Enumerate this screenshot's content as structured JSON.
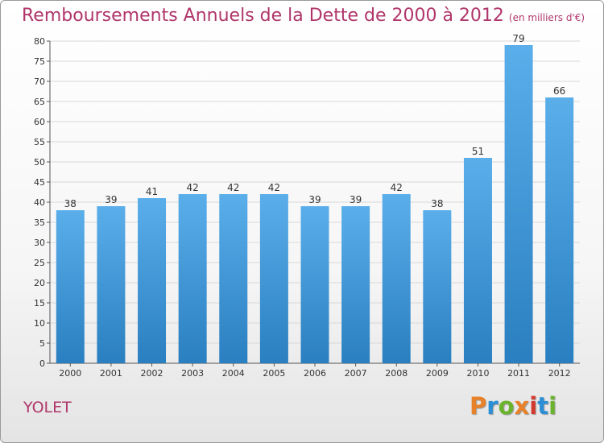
{
  "header": {
    "title": "Remboursements Annuels de la Dette de 2000 à 2012",
    "subtitle": "(en milliers d'€)"
  },
  "footer": {
    "commune": "YOLET",
    "logo_text": "Proxiti",
    "logo_colors": [
      "#e8822a",
      "#2a8fd6",
      "#6ab42d",
      "#e8822a",
      "#d33a2c",
      "#2a8fd6",
      "#6ab42d"
    ]
  },
  "colors": {
    "title": "#b0366a",
    "bar_top": "#5aaeea",
    "bar_bottom": "#2a7fc0",
    "grid": "#d8d8d8",
    "axis": "#555555"
  },
  "chart_data": {
    "type": "bar",
    "title": "Remboursements Annuels de la Dette de 2000 à 2012",
    "xlabel": "",
    "ylabel": "",
    "categories": [
      "2000",
      "2001",
      "2002",
      "2003",
      "2004",
      "2005",
      "2006",
      "2007",
      "2008",
      "2009",
      "2010",
      "2011",
      "2012"
    ],
    "values": [
      38,
      39,
      41,
      42,
      42,
      42,
      39,
      39,
      42,
      38,
      51,
      79,
      66
    ],
    "ylim": [
      0,
      80
    ],
    "yticks": [
      0,
      5,
      10,
      15,
      20,
      25,
      30,
      35,
      40,
      45,
      50,
      55,
      60,
      65,
      70,
      75,
      80
    ],
    "grid": true,
    "data_labels": true
  }
}
